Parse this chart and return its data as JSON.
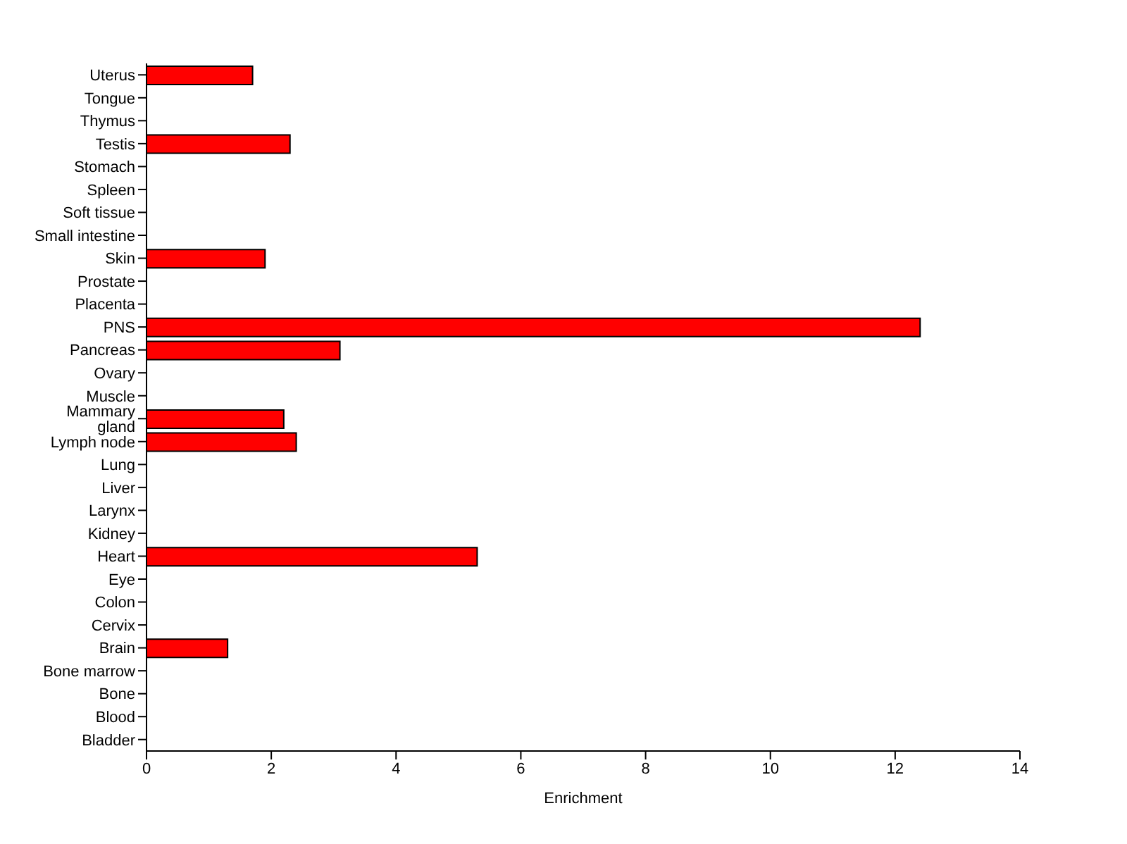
{
  "chart_data": {
    "type": "bar",
    "orientation": "horizontal",
    "xlabel": "Enrichment",
    "categories": [
      "Uterus",
      "Tongue",
      "Thymus",
      "Testis",
      "Stomach",
      "Spleen",
      "Soft tissue",
      "Small intestine",
      "Skin",
      "Prostate",
      "Placenta",
      "PNS",
      "Pancreas",
      "Ovary",
      "Muscle",
      "Mammary gland",
      "Lymph node",
      "Lung",
      "Liver",
      "Larynx",
      "Kidney",
      "Heart",
      "Eye",
      "Colon",
      "Cervix",
      "Brain",
      "Bone marrow",
      "Bone",
      "Blood",
      "Bladder"
    ],
    "values": [
      1.7,
      0,
      0,
      2.3,
      0,
      0,
      0,
      0,
      1.9,
      0,
      0,
      12.4,
      3.1,
      0,
      0,
      2.2,
      2.4,
      0,
      0,
      0,
      0,
      5.3,
      0,
      0,
      0,
      1.3,
      0,
      0,
      0,
      0
    ],
    "color": "#ff0000",
    "xlim": [
      0,
      14
    ],
    "xticks": [
      0,
      2,
      4,
      6,
      8,
      10,
      12,
      14
    ],
    "grid": false,
    "legend": false
  }
}
